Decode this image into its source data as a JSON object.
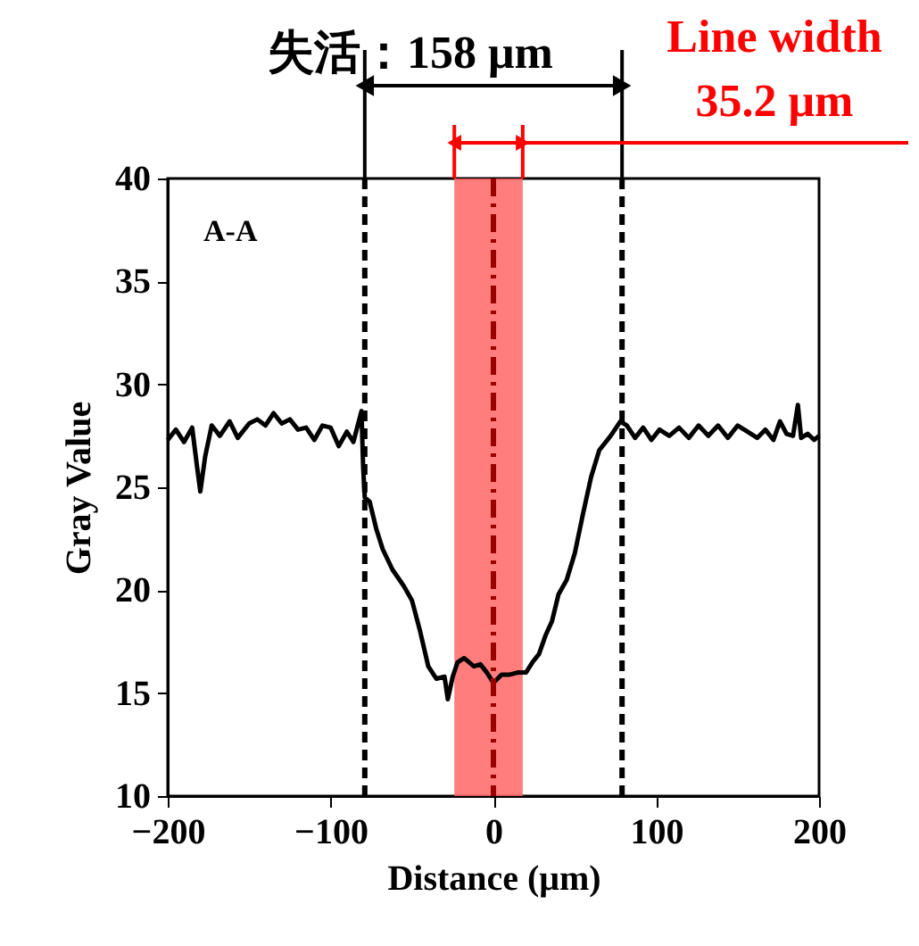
{
  "chart_data": {
    "type": "line",
    "xlabel": "Distance (μm)",
    "ylabel": "Gray Value",
    "x": [
      -200,
      -195,
      -190,
      -185,
      -182,
      -180,
      -177,
      -173,
      -168,
      -162,
      -157,
      -150,
      -145,
      -140,
      -135,
      -130,
      -125,
      -120,
      -115,
      -110,
      -105,
      -100,
      -95,
      -90,
      -86,
      -81,
      -80,
      -79,
      -76,
      -72,
      -68,
      -62,
      -55,
      -50,
      -45,
      -40,
      -35,
      -30,
      -28,
      -25,
      -22,
      -18,
      -12,
      -8,
      -4,
      0,
      5,
      10,
      15,
      20,
      24,
      28,
      32,
      36,
      40,
      45,
      50,
      55,
      60,
      65,
      72,
      78,
      82,
      87,
      92,
      97,
      102,
      108,
      114,
      120,
      126,
      132,
      138,
      144,
      150,
      156,
      162,
      167,
      172,
      176,
      180,
      184,
      187,
      189,
      193,
      197,
      200
    ],
    "series": [
      {
        "color": "#000000",
        "values": [
          27.3,
          27.8,
          27.2,
          27.9,
          26.0,
          24.8,
          26.5,
          28.0,
          27.5,
          28.2,
          27.4,
          28.1,
          28.3,
          28.0,
          28.6,
          28.1,
          28.3,
          27.8,
          27.9,
          27.3,
          28.0,
          27.9,
          27.0,
          27.7,
          27.2,
          28.7,
          26.0,
          24.5,
          24.3,
          23.0,
          22.0,
          21.0,
          20.2,
          19.5,
          18.0,
          16.3,
          15.7,
          15.8,
          14.7,
          15.8,
          16.5,
          16.7,
          16.3,
          16.4,
          16.0,
          15.5,
          15.9,
          15.9,
          16.0,
          16.0,
          16.5,
          16.9,
          17.8,
          18.5,
          19.8,
          20.5,
          21.8,
          23.7,
          25.5,
          26.8,
          27.5,
          28.2,
          28.0,
          27.4,
          27.9,
          27.3,
          27.8,
          27.5,
          27.9,
          27.4,
          28.0,
          27.5,
          28.0,
          27.4,
          28.0,
          27.7,
          27.4,
          27.8,
          27.3,
          28.2,
          27.6,
          27.5,
          29.0,
          27.4,
          27.6,
          27.3,
          27.5
        ]
      }
    ],
    "xlim": [
      -200,
      200
    ],
    "xticks": [
      -200,
      -100,
      0,
      100,
      200
    ],
    "ylim": [
      10,
      40
    ],
    "yticks": [
      10,
      15,
      20,
      25,
      30,
      35,
      40
    ],
    "grid": false,
    "marker": "none",
    "line_style": "solid",
    "ref_lines": [
      {
        "axis": "x",
        "value": -79,
        "color": "#000000",
        "line_style": "dashed"
      },
      {
        "axis": "x",
        "value": 79,
        "color": "#000000",
        "line_style": "dashed"
      },
      {
        "axis": "x",
        "value": 0,
        "color": "#990000",
        "line_style": "dashdot"
      }
    ],
    "bands": [
      {
        "axis": "x",
        "from": -24,
        "to": 18,
        "color": "#ff6666"
      }
    ],
    "annotations": [
      "A-A",
      "失活：158 μm",
      "Line width",
      "35.2 μm"
    ]
  }
}
